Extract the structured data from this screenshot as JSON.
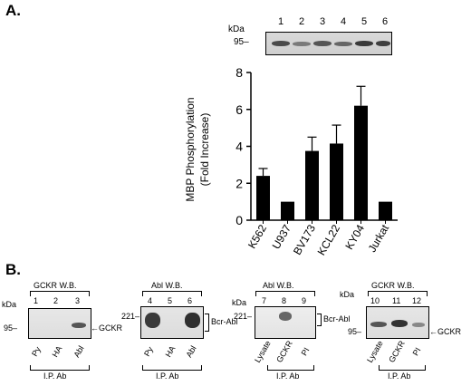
{
  "panel_a": {
    "label": "A.",
    "kda": "kDa",
    "marker": "95–",
    "lanes": [
      "1",
      "2",
      "3",
      "4",
      "5",
      "6"
    ]
  },
  "chart_data": {
    "type": "bar",
    "categories": [
      "K562",
      "U937",
      "BV173",
      "KCL22",
      "KY04",
      "Jurkat"
    ],
    "values": [
      2.4,
      1.0,
      3.75,
      4.15,
      6.2,
      1.0
    ],
    "errors": [
      0.4,
      0,
      0.75,
      1.0,
      1.05,
      0
    ],
    "ylabel_line1": "MBP Phosphorylation",
    "ylabel_line2": "(Fold Increase)",
    "ylim": [
      0,
      8
    ],
    "yticks": [
      0,
      2,
      4,
      6,
      8
    ],
    "bar_color": "#000000"
  },
  "panel_b": {
    "label": "B.",
    "blot1": {
      "title": "GCKR W.B.",
      "kda": "kDa",
      "lanes": [
        "1",
        "2",
        "3"
      ],
      "marker": "95–",
      "arrow_label": "GCKR",
      "lane_labels": [
        "Py",
        "HA",
        "Abl"
      ],
      "group_label": "I.P. Ab"
    },
    "blot2": {
      "title": "Abl W.B.",
      "lanes": [
        "4",
        "5",
        "6"
      ],
      "marker": "221–",
      "bracket_label": "Bcr-Abl",
      "lane_labels": [
        "Py",
        "HA",
        "Abl"
      ],
      "group_label": "I.P. Ab"
    },
    "blot3": {
      "title": "Abl W.B.",
      "kda": "kDa",
      "lanes": [
        "7",
        "8",
        "9"
      ],
      "marker": "221–",
      "bracket_label": "Bcr-Abl",
      "lane_labels": [
        "Lysate",
        "GCKR",
        "PI"
      ],
      "group_label": "I.P. Ab"
    },
    "blot4": {
      "title": "GCKR W.B.",
      "kda": "kDa",
      "lanes": [
        "10",
        "11",
        "12"
      ],
      "marker": "95–",
      "arrow_label": "GCKR",
      "lane_labels": [
        "Lysate",
        "GCKR",
        "PI"
      ],
      "group_label": "I.P. Ab"
    }
  }
}
